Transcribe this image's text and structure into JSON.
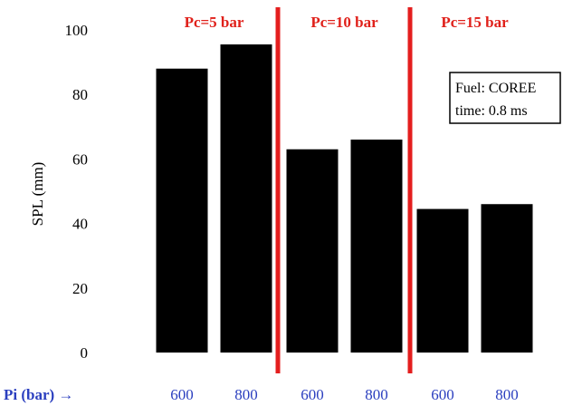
{
  "chart_data": {
    "type": "bar",
    "ylabel": "SPL (mm)",
    "xlabel": "Pi (bar) →",
    "ylim": [
      0,
      100
    ],
    "yticks": [
      0,
      20,
      40,
      60,
      80,
      100
    ],
    "categories": [
      "600",
      "800",
      "600",
      "800",
      "600",
      "800"
    ],
    "values": [
      88,
      95.5,
      63,
      66,
      44.5,
      46
    ],
    "bar_color": "#000000",
    "groups": [
      {
        "label": "Pc=5 bar",
        "bars": [
          0,
          1
        ]
      },
      {
        "label": "Pc=10 bar",
        "bars": [
          2,
          3
        ]
      },
      {
        "label": "Pc=15 bar",
        "bars": [
          4,
          5
        ]
      }
    ],
    "separator_color": "#e41e1e",
    "group_label_color": "#e0201a",
    "tick_label_color": "#2b3fbf",
    "annotation": {
      "lines": [
        "Fuel: COREE",
        "time: 0.8 ms"
      ]
    },
    "grid": false,
    "legend": "none"
  }
}
